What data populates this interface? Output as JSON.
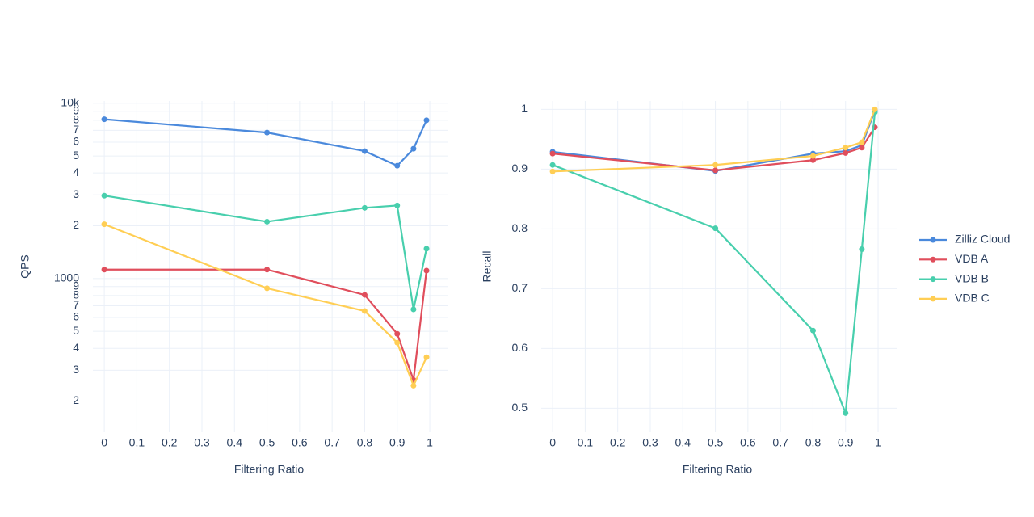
{
  "chart_data": [
    {
      "type": "line",
      "y_label": "QPS",
      "x_label": "Filtering Ratio",
      "log_y": true,
      "grid": true,
      "x": [
        0,
        0.5,
        0.8,
        0.9,
        0.95,
        0.99
      ],
      "xlim": [
        -0.035,
        1.057
      ],
      "xticks": [
        0,
        0.1,
        0.2,
        0.3,
        0.4,
        0.5,
        0.6,
        0.7,
        0.8,
        0.9,
        1
      ],
      "ylim": [
        133,
        10300
      ],
      "yticks": [
        {
          "value": 200,
          "label": "2"
        },
        {
          "value": 300,
          "label": "3"
        },
        {
          "value": 400,
          "label": "4"
        },
        {
          "value": 500,
          "label": "5"
        },
        {
          "value": 600,
          "label": "6"
        },
        {
          "value": 700,
          "label": "7"
        },
        {
          "value": 800,
          "label": "8"
        },
        {
          "value": 900,
          "label": "9"
        },
        1000,
        {
          "value": 2000,
          "label": "2"
        },
        {
          "value": 3000,
          "label": "3"
        },
        {
          "value": 4000,
          "label": "4"
        },
        {
          "value": 5000,
          "label": "5"
        },
        {
          "value": 6000,
          "label": "6"
        },
        {
          "value": 7000,
          "label": "7"
        },
        {
          "value": 8000,
          "label": "8"
        },
        {
          "value": 9000,
          "label": "9"
        },
        {
          "value": 10000,
          "label": "10k"
        }
      ],
      "series": [
        {
          "name": "Zilliz Cloud",
          "color": "#4a89dc",
          "values": [
            8100,
            6800,
            5330,
            4400,
            5500,
            8000
          ]
        },
        {
          "name": "VDB A",
          "color": "#e04e5c",
          "values": [
            1125,
            1125,
            807,
            484,
            264,
            1110
          ]
        },
        {
          "name": "VDB B",
          "color": "#48cfad",
          "values": [
            2970,
            2110,
            2530,
            2610,
            667,
            1480
          ]
        },
        {
          "name": "VDB C",
          "color": "#ffce54",
          "values": [
            2040,
            880,
            653,
            431,
            245,
            356
          ]
        }
      ]
    },
    {
      "type": "line",
      "y_label": "Recall",
      "x_label": "Filtering Ratio",
      "log_y": false,
      "grid": true,
      "legend": "right",
      "x": [
        0,
        0.5,
        0.8,
        0.9,
        0.95,
        0.99
      ],
      "xlim": [
        -0.035,
        1.057
      ],
      "xticks": [
        0,
        0.1,
        0.2,
        0.3,
        0.4,
        0.5,
        0.6,
        0.7,
        0.8,
        0.9,
        1
      ],
      "ylim": [
        0.46,
        1.014
      ],
      "yticks": [
        0.5,
        0.6,
        0.7,
        0.8,
        0.9,
        1
      ],
      "series": [
        {
          "name": "Zilliz Cloud",
          "color": "#4a89dc",
          "values": [
            0.929,
            0.897,
            0.926,
            0.93,
            0.94,
            0.998
          ]
        },
        {
          "name": "VDB A",
          "color": "#e04e5c",
          "values": [
            0.926,
            0.898,
            0.915,
            0.927,
            0.936,
            0.97
          ]
        },
        {
          "name": "VDB B",
          "color": "#48cfad",
          "values": [
            0.907,
            0.801,
            0.63,
            0.492,
            0.766,
            0.995
          ]
        },
        {
          "name": "VDB C",
          "color": "#ffce54",
          "values": [
            0.896,
            0.907,
            0.922,
            0.936,
            0.945,
            1.0
          ]
        }
      ]
    }
  ]
}
